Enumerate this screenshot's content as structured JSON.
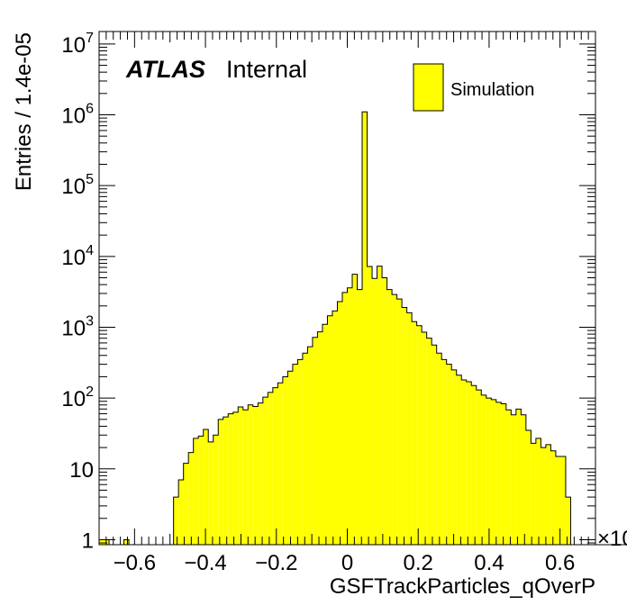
{
  "chart_data": {
    "type": "histogram",
    "xlabel": "GSFTrackParticles_qOverP",
    "ylabel": "Entries / 1.4e-05",
    "x_exponent_label": "×10",
    "xlim": [
      -0.0007,
      0.0007
    ],
    "x_tick_scale": 1000,
    "x_ticks": [
      -0.6,
      -0.4,
      -0.2,
      0,
      0.2,
      0.4,
      0.6
    ],
    "x_tick_labels": [
      "−0.6",
      "−0.4",
      "−0.2",
      "0",
      "0.2",
      "0.4",
      "0.6"
    ],
    "y_scale": "log",
    "ylim": [
      0.85,
      15000000
    ],
    "y_ticks": [
      {
        "value": 1,
        "base": "1",
        "exp": ""
      },
      {
        "value": 10,
        "base": "10",
        "exp": ""
      },
      {
        "value": 100,
        "base": "10",
        "exp": "2"
      },
      {
        "value": 1000,
        "base": "10",
        "exp": "3"
      },
      {
        "value": 10000,
        "base": "10",
        "exp": "4"
      },
      {
        "value": 100000,
        "base": "10",
        "exp": "5"
      },
      {
        "value": 1000000,
        "base": "10",
        "exp": "6"
      },
      {
        "value": 10000000,
        "base": "10",
        "exp": "7"
      }
    ],
    "bin_width": 1.4e-05,
    "bin_start": -0.0007,
    "fill_color": "#ffff00",
    "line_color": "#000000",
    "legend": {
      "label": "Simulation",
      "position": "top-right"
    },
    "atlas_label": {
      "bold": "ATLAS",
      "normal": "Internal"
    },
    "values": [
      1,
      1,
      0,
      0,
      0,
      1,
      0,
      0,
      0,
      0,
      0,
      0,
      0,
      0,
      0,
      4,
      7,
      12,
      17,
      27,
      29,
      36,
      24,
      30,
      50,
      54,
      60,
      63,
      75,
      68,
      80,
      76,
      85,
      103,
      120,
      140,
      164,
      200,
      240,
      300,
      350,
      430,
      530,
      720,
      860,
      1100,
      1450,
      1700,
      2300,
      3100,
      3600,
      5600,
      3400,
      1100000,
      7200,
      4900,
      7300,
      5000,
      3400,
      2900,
      2500,
      1900,
      1600,
      1200,
      1050,
      850,
      700,
      560,
      430,
      350,
      300,
      250,
      210,
      180,
      170,
      150,
      130,
      110,
      100,
      95,
      87,
      83,
      68,
      58,
      70,
      58,
      35,
      23,
      27,
      20,
      22,
      18,
      15,
      15,
      4,
      0,
      0,
      0,
      0,
      0,
      0,
      0,
      0,
      0,
      0,
      0,
      0,
      0,
      0,
      0
    ]
  }
}
